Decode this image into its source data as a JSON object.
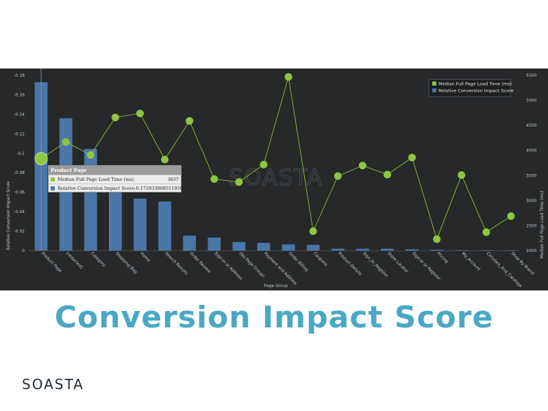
{
  "slide_title": "Conversion Impact Score",
  "logo_text": "SOASTA",
  "colors": {
    "bar": "#4a76a8",
    "line": "#8dc63f",
    "background": "#262829",
    "title": "#4aa8c5"
  },
  "chart_data": {
    "type": "bar+line",
    "xlabel": "Page Group",
    "ylabel_left": "Relative Conversion Impact Score",
    "ylabel_right": "Median Full Page Load Time (ms)",
    "watermark": "SOASTA",
    "categories": [
      "Product Page",
      "[redacted]",
      "Category",
      "Shopping Bag",
      "Home",
      "Search Results",
      "Order Review",
      "Sign-In or Address",
      "(No Page Group)",
      "Payment and Address",
      "Order Billing",
      "Coupons",
      "Product Details",
      "Sign_In_Register",
      "Store Locator",
      "Sign-In or Register",
      "Pricing",
      "My_Account",
      "Circulars_And_Catalogs",
      "Shop By Brand"
    ],
    "left_axis": {
      "ticks": [
        "0",
        "-0.02",
        "-0.04",
        "-0.06",
        "-0.08",
        "-0.1",
        "-0.12",
        "-0.14",
        "-0.16",
        "-0.18"
      ],
      "range": [
        0,
        -0.18
      ]
    },
    "right_axis": {
      "ticks": [
        "2000",
        "2500",
        "3000",
        "3500",
        "4000",
        "4500",
        "5000",
        "5500"
      ],
      "range": [
        2000,
        5500
      ]
    },
    "series": [
      {
        "name": "Relative Conversion Impact Score",
        "type": "bar",
        "axis": "left",
        "values": [
          -0.1729,
          -0.136,
          -0.1045,
          -0.0625,
          -0.0535,
          -0.0505,
          -0.0155,
          -0.0135,
          -0.009,
          -0.008,
          -0.0065,
          -0.006,
          -0.002,
          -0.002,
          -0.002,
          -0.0015,
          -0.001,
          -0.0005,
          -0.0005,
          -0.0003
        ]
      },
      {
        "name": "Median Full Page Load Time (ms)",
        "type": "line",
        "axis": "right",
        "values": [
          3837,
          4170,
          3910,
          4660,
          4740,
          3820,
          4590,
          3430,
          3370,
          3720,
          5470,
          2390,
          3490,
          3700,
          3520,
          3860,
          2230,
          3510,
          2370,
          2690
        ]
      }
    ],
    "legend": [
      "Median Full Page Load Time (ms)",
      "Relative Conversion Impact Score"
    ],
    "legend_position": "top-right"
  },
  "tooltip": {
    "title": "Product Page",
    "rows": [
      {
        "label": "Median Full Page Load Time (ms)",
        "value": "3837"
      },
      {
        "label": "Relative Conversion Impact Score",
        "value": "-0.17293386851195935"
      }
    ]
  }
}
